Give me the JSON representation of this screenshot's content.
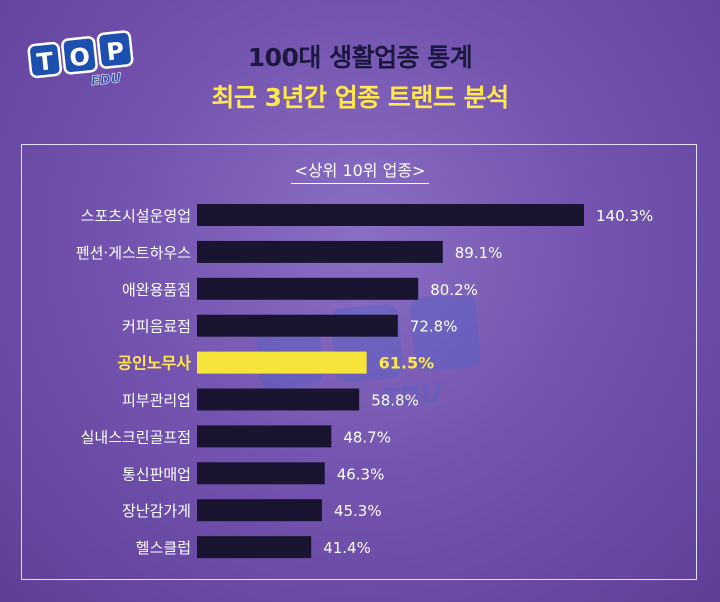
{
  "logo": {
    "main_text": "TOP",
    "sub_text": "EDU"
  },
  "header": {
    "title_line1": "100대 생활업종 통계",
    "title_line2": "최근 3년간 업종 트랜드 분석"
  },
  "chart_data": {
    "type": "bar",
    "orientation": "horizontal",
    "title": "<상위 10위 업종>",
    "categories": [
      "스포츠시설운영업",
      "펜션·게스트하우스",
      "애완용품점",
      "커피음료점",
      "공인노무사",
      "피부관리업",
      "실내스크린골프점",
      "통신판매업",
      "장난감가게",
      "헬스클럽"
    ],
    "values": [
      140.3,
      89.1,
      80.2,
      72.8,
      61.5,
      58.8,
      48.7,
      46.3,
      45.3,
      41.4
    ],
    "value_labels": [
      "140.3%",
      "89.1%",
      "80.2%",
      "72.8%",
      "61.5%",
      "58.8%",
      "48.7%",
      "46.3%",
      "45.3%",
      "41.4%"
    ],
    "highlight_category": "공인노무사",
    "colors": {
      "bar": "#191530",
      "highlight_bar": "#f7e43a",
      "label": "#ffffff",
      "highlight_label": "#ffe84a"
    },
    "xlim": [
      0,
      140.3
    ],
    "grid": false,
    "legend": "none"
  }
}
